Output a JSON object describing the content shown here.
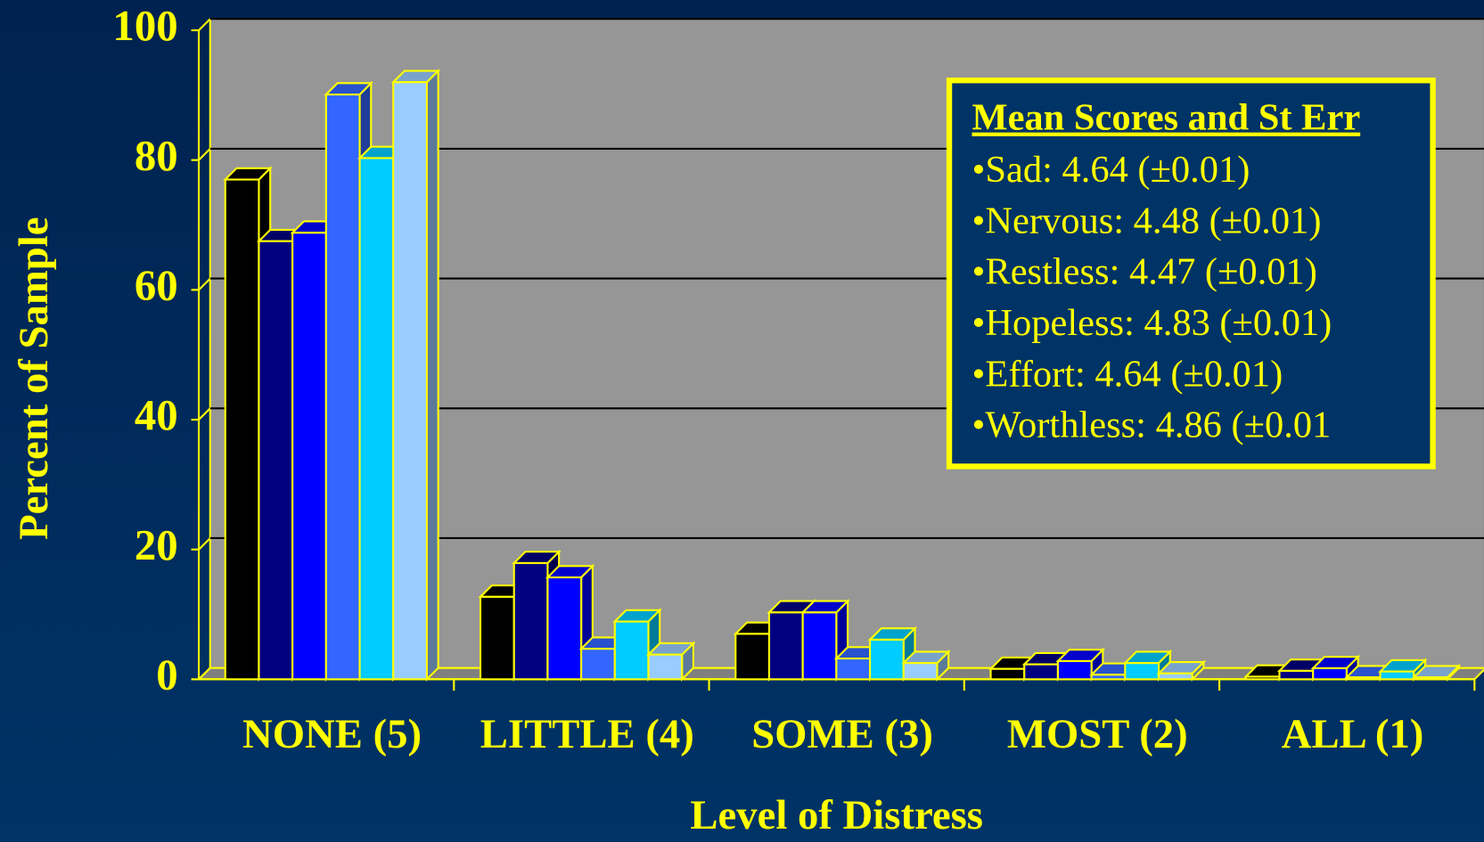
{
  "chart_data": {
    "type": "bar",
    "xlabel": "Level of Distress",
    "ylabel": "Percent of Sample",
    "categories": [
      "NONE (5)",
      "LITTLE (4)",
      "SOME (3)",
      "MOST (2)",
      "ALL (1)"
    ],
    "series": [
      {
        "color": "#000000",
        "values": [
          77,
          12.7,
          7,
          1.6,
          0.4
        ]
      },
      {
        "color": "#000080",
        "values": [
          67.5,
          17.9,
          10.3,
          2.3,
          1.3
        ]
      },
      {
        "color": "#0000ff",
        "values": [
          68.8,
          15.7,
          10.3,
          2.8,
          1.7
        ]
      },
      {
        "color": "#3366ff",
        "values": [
          90.1,
          4.7,
          3.2,
          0.7,
          0.3
        ]
      },
      {
        "color": "#00ccff",
        "values": [
          80.3,
          8.9,
          6.1,
          2.5,
          1.2
        ]
      },
      {
        "color": "#99ccff",
        "values": [
          92,
          3.8,
          2.5,
          0.9,
          0.3
        ]
      }
    ],
    "ylim": [
      0,
      100
    ],
    "yticks": [
      0,
      20,
      40,
      60,
      80,
      100
    ],
    "grid": true,
    "annotation": {
      "title": "Mean Scores and St Err",
      "lines": [
        "•Sad: 4.64 (±0.01)",
        "•Nervous: 4.48 (±0.01)",
        "•Restless: 4.47 (±0.01)",
        "•Hopeless: 4.83 (±0.01)",
        "•Effort: 4.64 (±0.01)",
        "•Worthless: 4.86 (±0.01"
      ]
    }
  }
}
